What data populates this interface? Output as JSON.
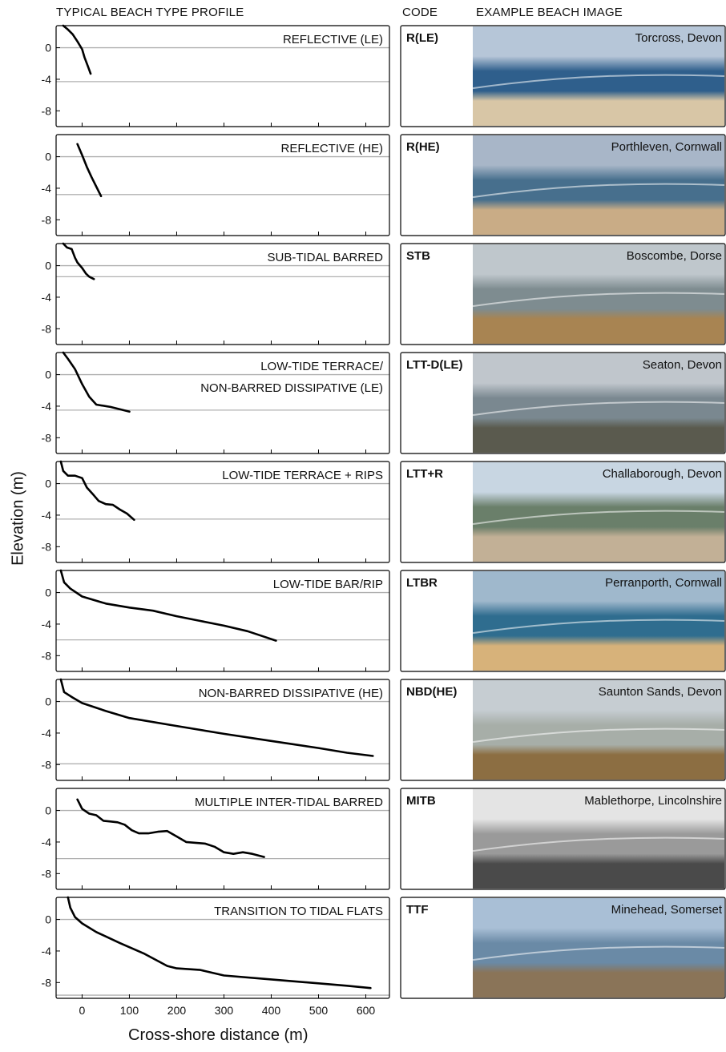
{
  "headers": {
    "profile": "TYPICAL BEACH TYPE PROFILE",
    "code": "CODE",
    "image": "EXAMPLE BEACH IMAGE"
  },
  "axis": {
    "ylabel": "Elevation (m)",
    "xlabel": "Cross-shore distance (m)"
  },
  "chart_data": {
    "type": "line",
    "xlim": [
      -55,
      650
    ],
    "ylim": [
      -10,
      2.8
    ],
    "x_ticks": [
      0,
      100,
      200,
      300,
      400,
      500,
      600
    ],
    "y_ticks": [
      0,
      -4,
      -8
    ],
    "panels": [
      {
        "title_lines": [
          "REFLECTIVE (LE)"
        ],
        "code": "R(LE)",
        "location": "Torcross, Devon",
        "low_water_level": -4.3,
        "photo_palette": [
          "#b6c6d8",
          "#2f5f8c",
          "#d8c6a6"
        ],
        "profile": [
          [
            -40,
            2.8
          ],
          [
            -30,
            2.3
          ],
          [
            -20,
            1.7
          ],
          [
            -10,
            0.8
          ],
          [
            0,
            -0.2
          ],
          [
            5,
            -1.2
          ],
          [
            12,
            -2.3
          ],
          [
            18,
            -3.3
          ]
        ]
      },
      {
        "title_lines": [
          "REFLECTIVE (HE)"
        ],
        "code": "R(HE)",
        "location": "Porthleven, Cornwall",
        "low_water_level": -4.8,
        "photo_palette": [
          "#a8b6c8",
          "#476f8d",
          "#c9ac86"
        ],
        "profile": [
          [
            -10,
            1.6
          ],
          [
            0,
            0.2
          ],
          [
            10,
            -1.3
          ],
          [
            20,
            -2.6
          ],
          [
            30,
            -3.8
          ],
          [
            40,
            -5.0
          ]
        ]
      },
      {
        "title_lines": [
          "SUB-TIDAL BARRED"
        ],
        "code": "STB",
        "location": "Boscombe, Dorse",
        "low_water_level": -1.4,
        "photo_palette": [
          "#bfc7cc",
          "#7e8c90",
          "#a88452"
        ],
        "profile": [
          [
            -40,
            2.8
          ],
          [
            -32,
            2.3
          ],
          [
            -22,
            2.1
          ],
          [
            -15,
            1.0
          ],
          [
            -10,
            0.4
          ],
          [
            0,
            -0.3
          ],
          [
            8,
            -1.0
          ],
          [
            15,
            -1.4
          ],
          [
            25,
            -1.7
          ]
        ]
      },
      {
        "title_lines": [
          "LOW-TIDE TERRACE/",
          "NON-BARRED DISSIPATIVE (LE)"
        ],
        "code": "LTT-D(LE)",
        "location": "Seaton, Devon",
        "low_water_level": -4.5,
        "photo_palette": [
          "#c0c6cc",
          "#7a8890",
          "#5a5a4e"
        ],
        "profile": [
          [
            -40,
            2.8
          ],
          [
            -30,
            2.0
          ],
          [
            -15,
            0.7
          ],
          [
            0,
            -1.2
          ],
          [
            15,
            -2.8
          ],
          [
            30,
            -3.8
          ],
          [
            60,
            -4.1
          ],
          [
            100,
            -4.7
          ]
        ]
      },
      {
        "title_lines": [
          "LOW-TIDE TERRACE + RIPS"
        ],
        "code": "LTT+R",
        "location": "Challaborough, Devon",
        "low_water_level": -4.5,
        "photo_palette": [
          "#c8d6e2",
          "#6a7f6a",
          "#c2b096"
        ],
        "profile": [
          [
            -45,
            2.8
          ],
          [
            -40,
            1.6
          ],
          [
            -30,
            1.0
          ],
          [
            -15,
            1.0
          ],
          [
            0,
            0.7
          ],
          [
            10,
            -0.5
          ],
          [
            25,
            -1.5
          ],
          [
            35,
            -2.2
          ],
          [
            50,
            -2.6
          ],
          [
            65,
            -2.7
          ],
          [
            80,
            -3.3
          ],
          [
            95,
            -3.8
          ],
          [
            110,
            -4.6
          ]
        ]
      },
      {
        "title_lines": [
          "LOW-TIDE BAR/RIP"
        ],
        "code": "LTBR",
        "location": "Perranporth, Cornwall",
        "low_water_level": -6.0,
        "photo_palette": [
          "#9fb8cc",
          "#2f6d8f",
          "#d7b27a"
        ],
        "profile": [
          [
            -45,
            2.8
          ],
          [
            -38,
            1.3
          ],
          [
            -25,
            0.5
          ],
          [
            0,
            -0.5
          ],
          [
            50,
            -1.4
          ],
          [
            100,
            -1.9
          ],
          [
            150,
            -2.3
          ],
          [
            200,
            -3.0
          ],
          [
            250,
            -3.6
          ],
          [
            300,
            -4.2
          ],
          [
            350,
            -4.9
          ],
          [
            380,
            -5.5
          ],
          [
            410,
            -6.1
          ]
        ]
      },
      {
        "title_lines": [
          "NON-BARRED DISSIPATIVE (HE)"
        ],
        "code": "NBD(HE)",
        "location": "Saunton Sands, Devon",
        "low_water_level": -7.9,
        "photo_palette": [
          "#c6cdd2",
          "#a7aea8",
          "#8c6e42"
        ],
        "profile": [
          [
            -45,
            2.8
          ],
          [
            -38,
            1.2
          ],
          [
            -20,
            0.5
          ],
          [
            0,
            -0.2
          ],
          [
            50,
            -1.2
          ],
          [
            100,
            -2.1
          ],
          [
            200,
            -3.1
          ],
          [
            300,
            -4.1
          ],
          [
            400,
            -5.0
          ],
          [
            500,
            -5.9
          ],
          [
            560,
            -6.5
          ],
          [
            615,
            -6.9
          ]
        ]
      },
      {
        "title_lines": [
          "MULTIPLE INTER-TIDAL BARRED"
        ],
        "code": "MITB",
        "location": "Mablethorpe, Lincolnshire",
        "low_water_level": -6.1,
        "photo_palette": [
          "#e4e4e4",
          "#9a9a9a",
          "#4a4a4a"
        ],
        "profile": [
          [
            -10,
            1.4
          ],
          [
            0,
            0.2
          ],
          [
            15,
            -0.4
          ],
          [
            30,
            -0.6
          ],
          [
            45,
            -1.3
          ],
          [
            60,
            -1.4
          ],
          [
            75,
            -1.5
          ],
          [
            90,
            -1.8
          ],
          [
            105,
            -2.5
          ],
          [
            120,
            -2.9
          ],
          [
            140,
            -2.9
          ],
          [
            160,
            -2.7
          ],
          [
            180,
            -2.6
          ],
          [
            200,
            -3.3
          ],
          [
            220,
            -4.0
          ],
          [
            240,
            -4.1
          ],
          [
            260,
            -4.2
          ],
          [
            280,
            -4.6
          ],
          [
            300,
            -5.3
          ],
          [
            320,
            -5.5
          ],
          [
            340,
            -5.3
          ],
          [
            360,
            -5.5
          ],
          [
            385,
            -5.9
          ]
        ]
      },
      {
        "title_lines": [
          "TRANSITION TO TIDAL FLATS"
        ],
        "code": "TTF",
        "location": "Minehead, Somerset",
        "low_water_level": -9.6,
        "photo_palette": [
          "#a9bfd6",
          "#6a8aa6",
          "#8a7458"
        ],
        "profile": [
          [
            -30,
            2.8
          ],
          [
            -25,
            1.5
          ],
          [
            -15,
            0.3
          ],
          [
            0,
            -0.5
          ],
          [
            30,
            -1.6
          ],
          [
            80,
            -3.0
          ],
          [
            130,
            -4.3
          ],
          [
            180,
            -5.9
          ],
          [
            200,
            -6.2
          ],
          [
            250,
            -6.4
          ],
          [
            300,
            -7.1
          ],
          [
            400,
            -7.6
          ],
          [
            500,
            -8.1
          ],
          [
            560,
            -8.4
          ],
          [
            610,
            -8.7
          ]
        ]
      }
    ]
  }
}
